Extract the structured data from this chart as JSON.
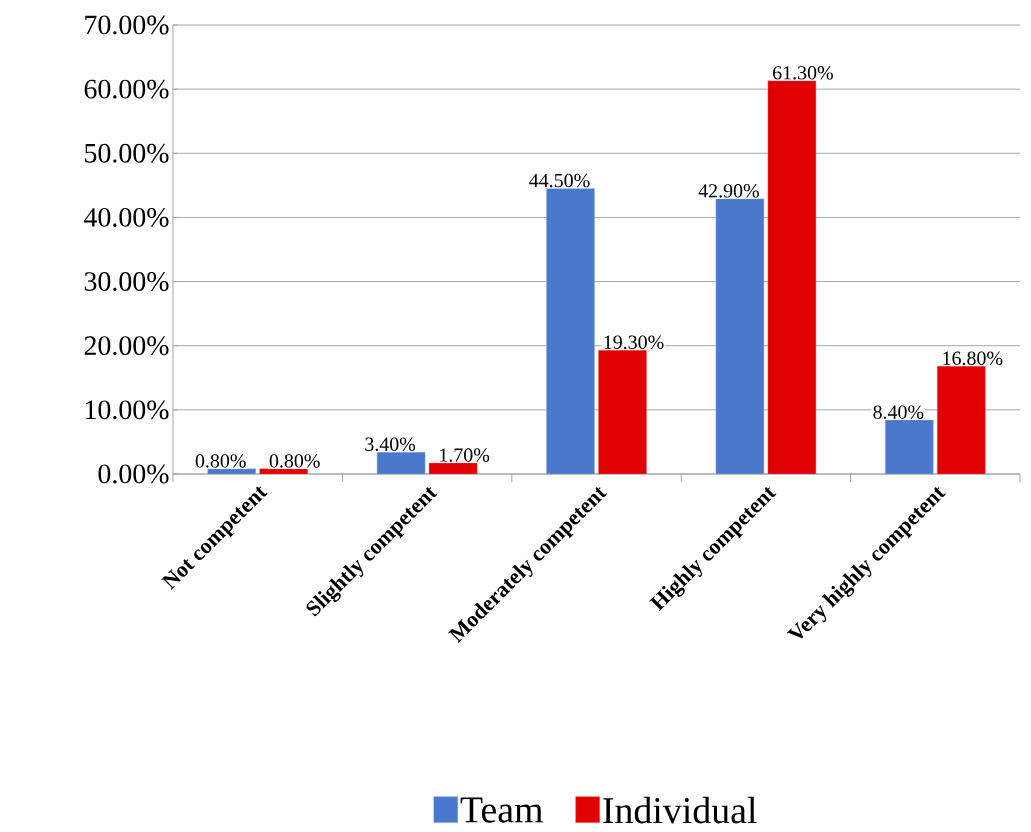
{
  "chart_data": {
    "type": "bar",
    "categories": [
      "Not competent",
      "Slightly competent",
      "Moderately competent",
      "Highly competent",
      "Very highly competent"
    ],
    "series": [
      {
        "name": "Team",
        "color": "#4a78cc",
        "values": [
          0.8,
          3.4,
          44.5,
          42.9,
          8.4
        ],
        "value_labels": [
          "0.80%",
          "3.40%",
          "44.50%",
          "42.90%",
          "8.40%"
        ]
      },
      {
        "name": "Individual",
        "color": "#e00000",
        "values": [
          0.8,
          1.7,
          19.3,
          61.3,
          16.8
        ],
        "value_labels": [
          "0.80%",
          "1.70%",
          "19.30%",
          "61.30%",
          "16.80%"
        ]
      }
    ],
    "ylim": [
      0,
      70
    ],
    "yticks": [
      {
        "value": 0,
        "label": "0.00%"
      },
      {
        "value": 10,
        "label": "10.00%"
      },
      {
        "value": 20,
        "label": "20.00%"
      },
      {
        "value": 30,
        "label": "30.00%"
      },
      {
        "value": 40,
        "label": "40.00%"
      },
      {
        "value": 50,
        "label": "50.00%"
      },
      {
        "value": 60,
        "label": "60.00%"
      },
      {
        "value": 70,
        "label": "70.00%"
      }
    ],
    "grid": "y",
    "legend": "bottom"
  }
}
